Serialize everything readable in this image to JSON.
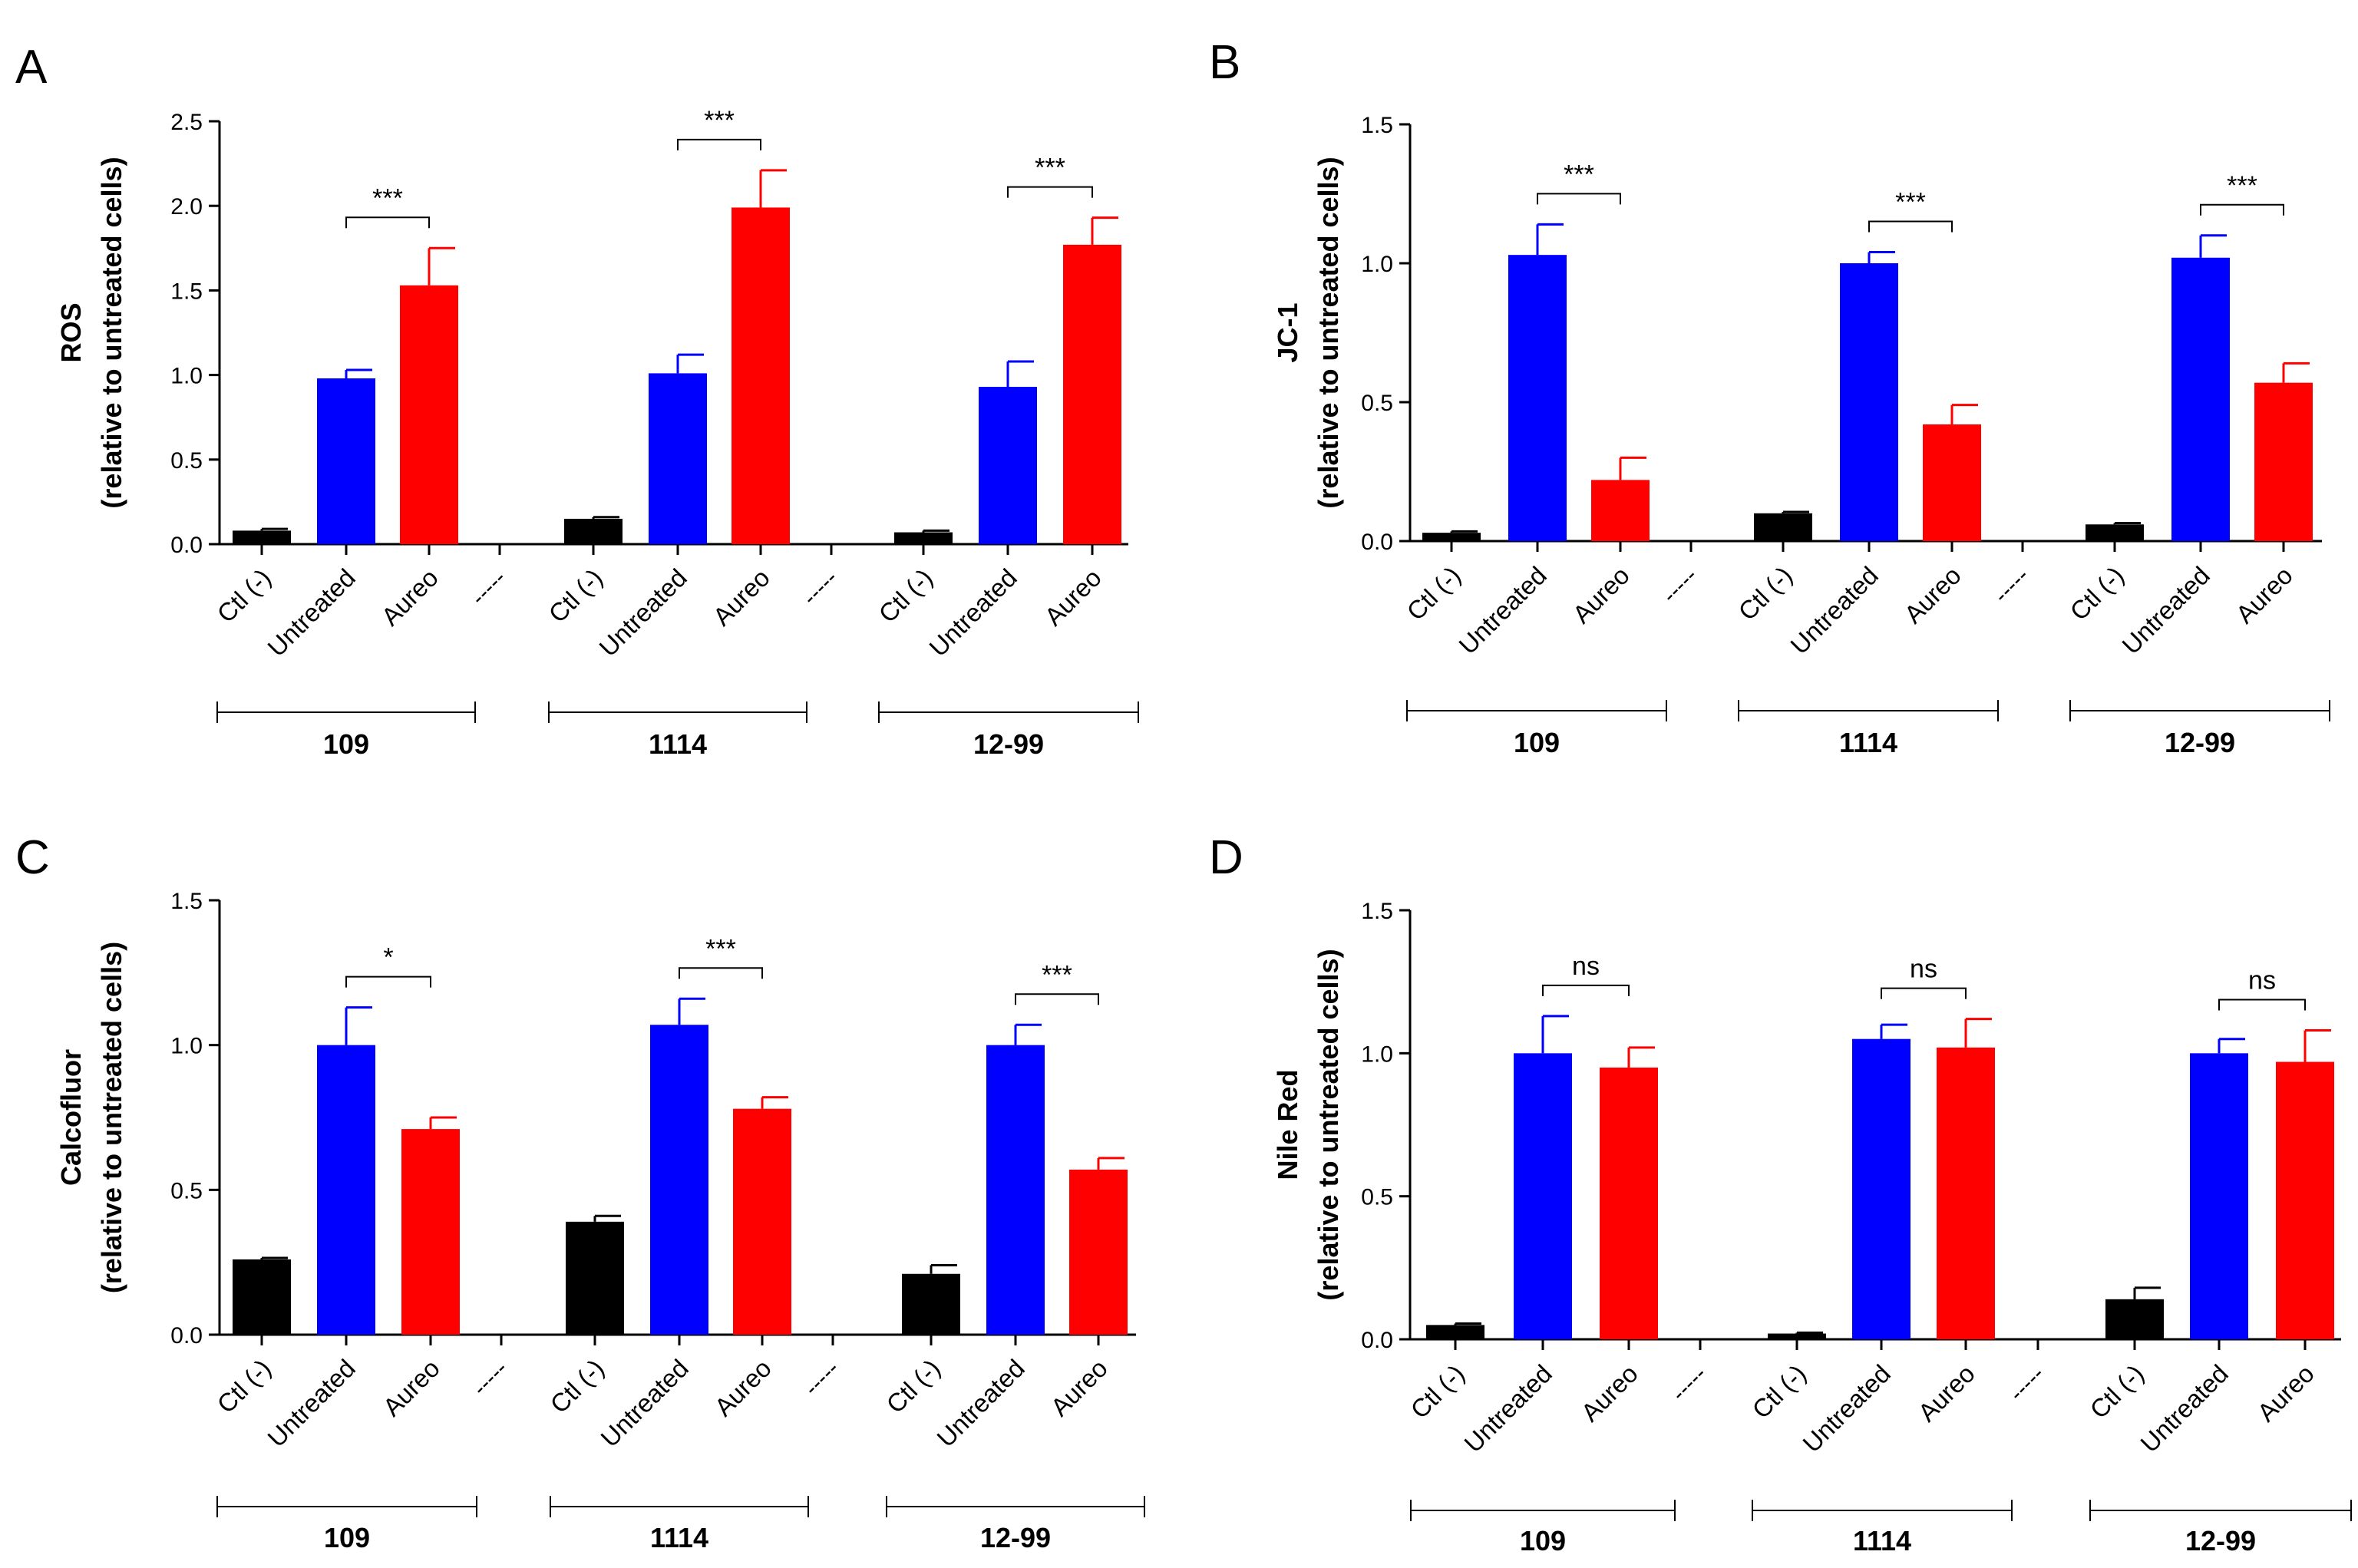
{
  "chart_data": [
    {
      "type": "bar",
      "panel_label": "A",
      "ylabel_line1": "ROS",
      "ylabel_line2": "(relative to untreated cells)",
      "ylim": [
        0,
        2.5
      ],
      "yticks": [
        0.0,
        0.5,
        1.0,
        1.5,
        2.0,
        2.5
      ],
      "tick_labels": [
        "0.0",
        "0.5",
        "1.0",
        "1.5",
        "2.0",
        "2.5"
      ],
      "categories": [
        "Ctl (-)",
        "Untreated",
        "Aureo"
      ],
      "separator_label": "-----",
      "groups": [
        {
          "name": "109",
          "values": [
            0.08,
            0.98,
            1.53
          ],
          "errors": [
            0.01,
            0.05,
            0.22
          ],
          "significance": "***"
        },
        {
          "name": "1114",
          "values": [
            0.15,
            1.01,
            1.99
          ],
          "errors": [
            0.01,
            0.11,
            0.22
          ],
          "significance": "***"
        },
        {
          "name": "12-99",
          "values": [
            0.07,
            0.93,
            1.77
          ],
          "errors": [
            0.01,
            0.15,
            0.16
          ],
          "significance": "***"
        }
      ],
      "colors": [
        "#000000",
        "#0000ff",
        "#ff0000"
      ]
    },
    {
      "type": "bar",
      "panel_label": "B",
      "ylabel_line1": "JC-1",
      "ylabel_line2": "(relative to untreated cells)",
      "ylim": [
        0,
        1.5
      ],
      "yticks": [
        0.0,
        0.5,
        1.0,
        1.5
      ],
      "tick_labels": [
        "0.0",
        "0.5",
        "1.0",
        "1.5"
      ],
      "categories": [
        "Ctl (-)",
        "Untreated",
        "Aureo"
      ],
      "separator_label": "-----",
      "groups": [
        {
          "name": "109",
          "values": [
            0.03,
            1.03,
            0.22
          ],
          "errors": [
            0.005,
            0.11,
            0.08
          ],
          "significance": "***"
        },
        {
          "name": "1114",
          "values": [
            0.1,
            1.0,
            0.42
          ],
          "errors": [
            0.005,
            0.04,
            0.07
          ],
          "significance": "***"
        },
        {
          "name": "12-99",
          "values": [
            0.06,
            1.02,
            0.57
          ],
          "errors": [
            0.005,
            0.08,
            0.07
          ],
          "significance": "***"
        }
      ],
      "colors": [
        "#000000",
        "#0000ff",
        "#ff0000"
      ]
    },
    {
      "type": "bar",
      "panel_label": "C",
      "ylabel_line1": "Calcofluor",
      "ylabel_line2": "(relative to untreated cells)",
      "ylim": [
        0,
        1.5
      ],
      "yticks": [
        0.0,
        0.5,
        1.0,
        1.5
      ],
      "tick_labels": [
        "0.0",
        "0.5",
        "1.0",
        "1.5"
      ],
      "categories": [
        "Ctl (-)",
        "Untreated",
        "Aureo"
      ],
      "separator_label": "-----",
      "groups": [
        {
          "name": "109",
          "values": [
            0.26,
            1.0,
            0.71
          ],
          "errors": [
            0.005,
            0.13,
            0.04
          ],
          "significance": "*"
        },
        {
          "name": "1114",
          "values": [
            0.39,
            1.07,
            0.78
          ],
          "errors": [
            0.02,
            0.09,
            0.04
          ],
          "significance": "***"
        },
        {
          "name": "12-99",
          "values": [
            0.21,
            1.0,
            0.57
          ],
          "errors": [
            0.03,
            0.07,
            0.04
          ],
          "significance": "***"
        }
      ],
      "colors": [
        "#000000",
        "#0000ff",
        "#ff0000"
      ]
    },
    {
      "type": "bar",
      "panel_label": "D",
      "ylabel_line1": "Nile Red",
      "ylabel_line2": "(relative to untreated cells)",
      "ylim": [
        0,
        1.5
      ],
      "yticks": [
        0.0,
        0.5,
        1.0,
        1.5
      ],
      "tick_labels": [
        "0.0",
        "0.5",
        "1.0",
        "1.5"
      ],
      "categories": [
        "Ctl (-)",
        "Untreated",
        "Aureo"
      ],
      "separator_label": "-----",
      "groups": [
        {
          "name": "109",
          "values": [
            0.05,
            1.0,
            0.95
          ],
          "errors": [
            0.005,
            0.13,
            0.07
          ],
          "significance": "ns"
        },
        {
          "name": "1114",
          "values": [
            0.02,
            1.05,
            1.02
          ],
          "errors": [
            0.003,
            0.05,
            0.1
          ],
          "significance": "ns"
        },
        {
          "name": "12-99",
          "values": [
            0.14,
            1.0,
            0.97
          ],
          "errors": [
            0.04,
            0.05,
            0.11
          ],
          "significance": "ns"
        }
      ],
      "colors": [
        "#000000",
        "#0000ff",
        "#ff0000"
      ]
    }
  ]
}
